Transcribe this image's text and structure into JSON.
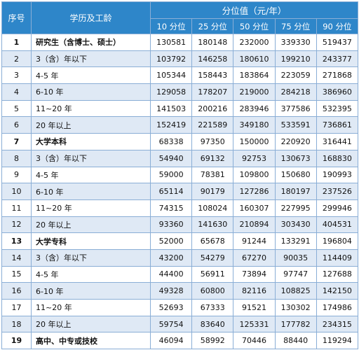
{
  "header": {
    "index": "序号",
    "education": "学历及工龄",
    "percentile_group": "分位值（元/年）",
    "percentiles": [
      "10 分位",
      "25 分位",
      "50 分位",
      "75 分位",
      "90 分位"
    ]
  },
  "rows": [
    {
      "idx": "1",
      "label": "研究生（含博士、硕士）",
      "bold": true,
      "values": [
        "130581",
        "180148",
        "232000",
        "339330",
        "519437"
      ]
    },
    {
      "idx": "2",
      "label": "3（含）年以下",
      "bold": false,
      "values": [
        "103792",
        "146258",
        "180610",
        "199210",
        "243377"
      ]
    },
    {
      "idx": "3",
      "label": "4-5 年",
      "bold": false,
      "values": [
        "105344",
        "158443",
        "183864",
        "223059",
        "271868"
      ]
    },
    {
      "idx": "4",
      "label": "6-10 年",
      "bold": false,
      "values": [
        "129058",
        "178207",
        "219000",
        "284218",
        "386960"
      ]
    },
    {
      "idx": "5",
      "label": "11~20 年",
      "bold": false,
      "values": [
        "141503",
        "200216",
        "283946",
        "377586",
        "532395"
      ]
    },
    {
      "idx": "6",
      "label": "20 年以上",
      "bold": false,
      "values": [
        "152419",
        "221589",
        "349180",
        "533591",
        "736861"
      ]
    },
    {
      "idx": "7",
      "label": "大学本科",
      "bold": true,
      "values": [
        "68338",
        "97350",
        "150000",
        "220920",
        "316441"
      ]
    },
    {
      "idx": "8",
      "label": "3（含）年以下",
      "bold": false,
      "values": [
        "54940",
        "69132",
        "92753",
        "130673",
        "168830"
      ]
    },
    {
      "idx": "9",
      "label": "4-5 年",
      "bold": false,
      "values": [
        "59000",
        "78381",
        "109800",
        "150680",
        "190993"
      ]
    },
    {
      "idx": "10",
      "label": "6-10 年",
      "bold": false,
      "values": [
        "65114",
        "90179",
        "127286",
        "180197",
        "237526"
      ]
    },
    {
      "idx": "11",
      "label": "11~20 年",
      "bold": false,
      "values": [
        "74315",
        "108024",
        "160307",
        "227995",
        "299946"
      ]
    },
    {
      "idx": "12",
      "label": "20 年以上",
      "bold": false,
      "values": [
        "93360",
        "141630",
        "210894",
        "303430",
        "404531"
      ]
    },
    {
      "idx": "13",
      "label": "大学专科",
      "bold": true,
      "values": [
        "52000",
        "65678",
        "91244",
        "133291",
        "196804"
      ]
    },
    {
      "idx": "14",
      "label": "3（含）年以下",
      "bold": false,
      "values": [
        "43200",
        "54279",
        "67270",
        "90035",
        "114409"
      ]
    },
    {
      "idx": "15",
      "label": "4-5 年",
      "bold": false,
      "values": [
        "44400",
        "56911",
        "73894",
        "97747",
        "127688"
      ]
    },
    {
      "idx": "16",
      "label": "6-10 年",
      "bold": false,
      "values": [
        "49328",
        "60800",
        "82116",
        "108825",
        "142150"
      ]
    },
    {
      "idx": "17",
      "label": "11~20 年",
      "bold": false,
      "values": [
        "52693",
        "67333",
        "91521",
        "130302",
        "174986"
      ]
    },
    {
      "idx": "18",
      "label": "20 年以上",
      "bold": false,
      "values": [
        "59754",
        "83640",
        "125331",
        "177782",
        "234315"
      ]
    },
    {
      "idx": "19",
      "label": "高中、中专或技校",
      "bold": true,
      "values": [
        "46094",
        "58992",
        "70446",
        "88440",
        "119294"
      ]
    }
  ],
  "colors": {
    "header_bg": "#2e86c9",
    "alt_row_bg": "#dfe9f5",
    "border": "#8aaed6"
  }
}
